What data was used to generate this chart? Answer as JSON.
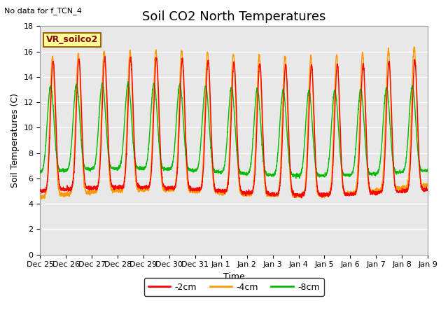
{
  "title": "Soil CO2 North Temperatures",
  "subtitle": "No data for f_TCN_4",
  "ylabel": "Soil Temperatures (C)",
  "xlabel": "Time",
  "ylim": [
    0,
    18
  ],
  "yticks": [
    0,
    2,
    4,
    6,
    8,
    10,
    12,
    14,
    16,
    18
  ],
  "xtick_labels": [
    "Dec 25",
    "Dec 26",
    "Dec 27",
    "Dec 28",
    "Dec 29",
    "Dec 30",
    "Dec 31",
    "Jan 1",
    "Jan 2",
    "Jan 3",
    "Jan 4",
    "Jan 5",
    "Jan 6",
    "Jan 7",
    "Jan 8",
    "Jan 9"
  ],
  "line_colors": [
    "#FF0000",
    "#FF9900",
    "#00BB00"
  ],
  "vr_box_color": "#FFFF99",
  "vr_box_text": "VR_soilco2",
  "vr_box_text_color": "#880000",
  "background_plot": "#E8E8E8",
  "background_fig": "#FFFFFF",
  "grid_color": "#FFFFFF",
  "title_fontsize": 13,
  "label_fontsize": 9,
  "tick_fontsize": 8,
  "legend_labels": [
    "-2cm",
    "-4cm",
    "-8cm"
  ],
  "legend_fontsize": 9
}
